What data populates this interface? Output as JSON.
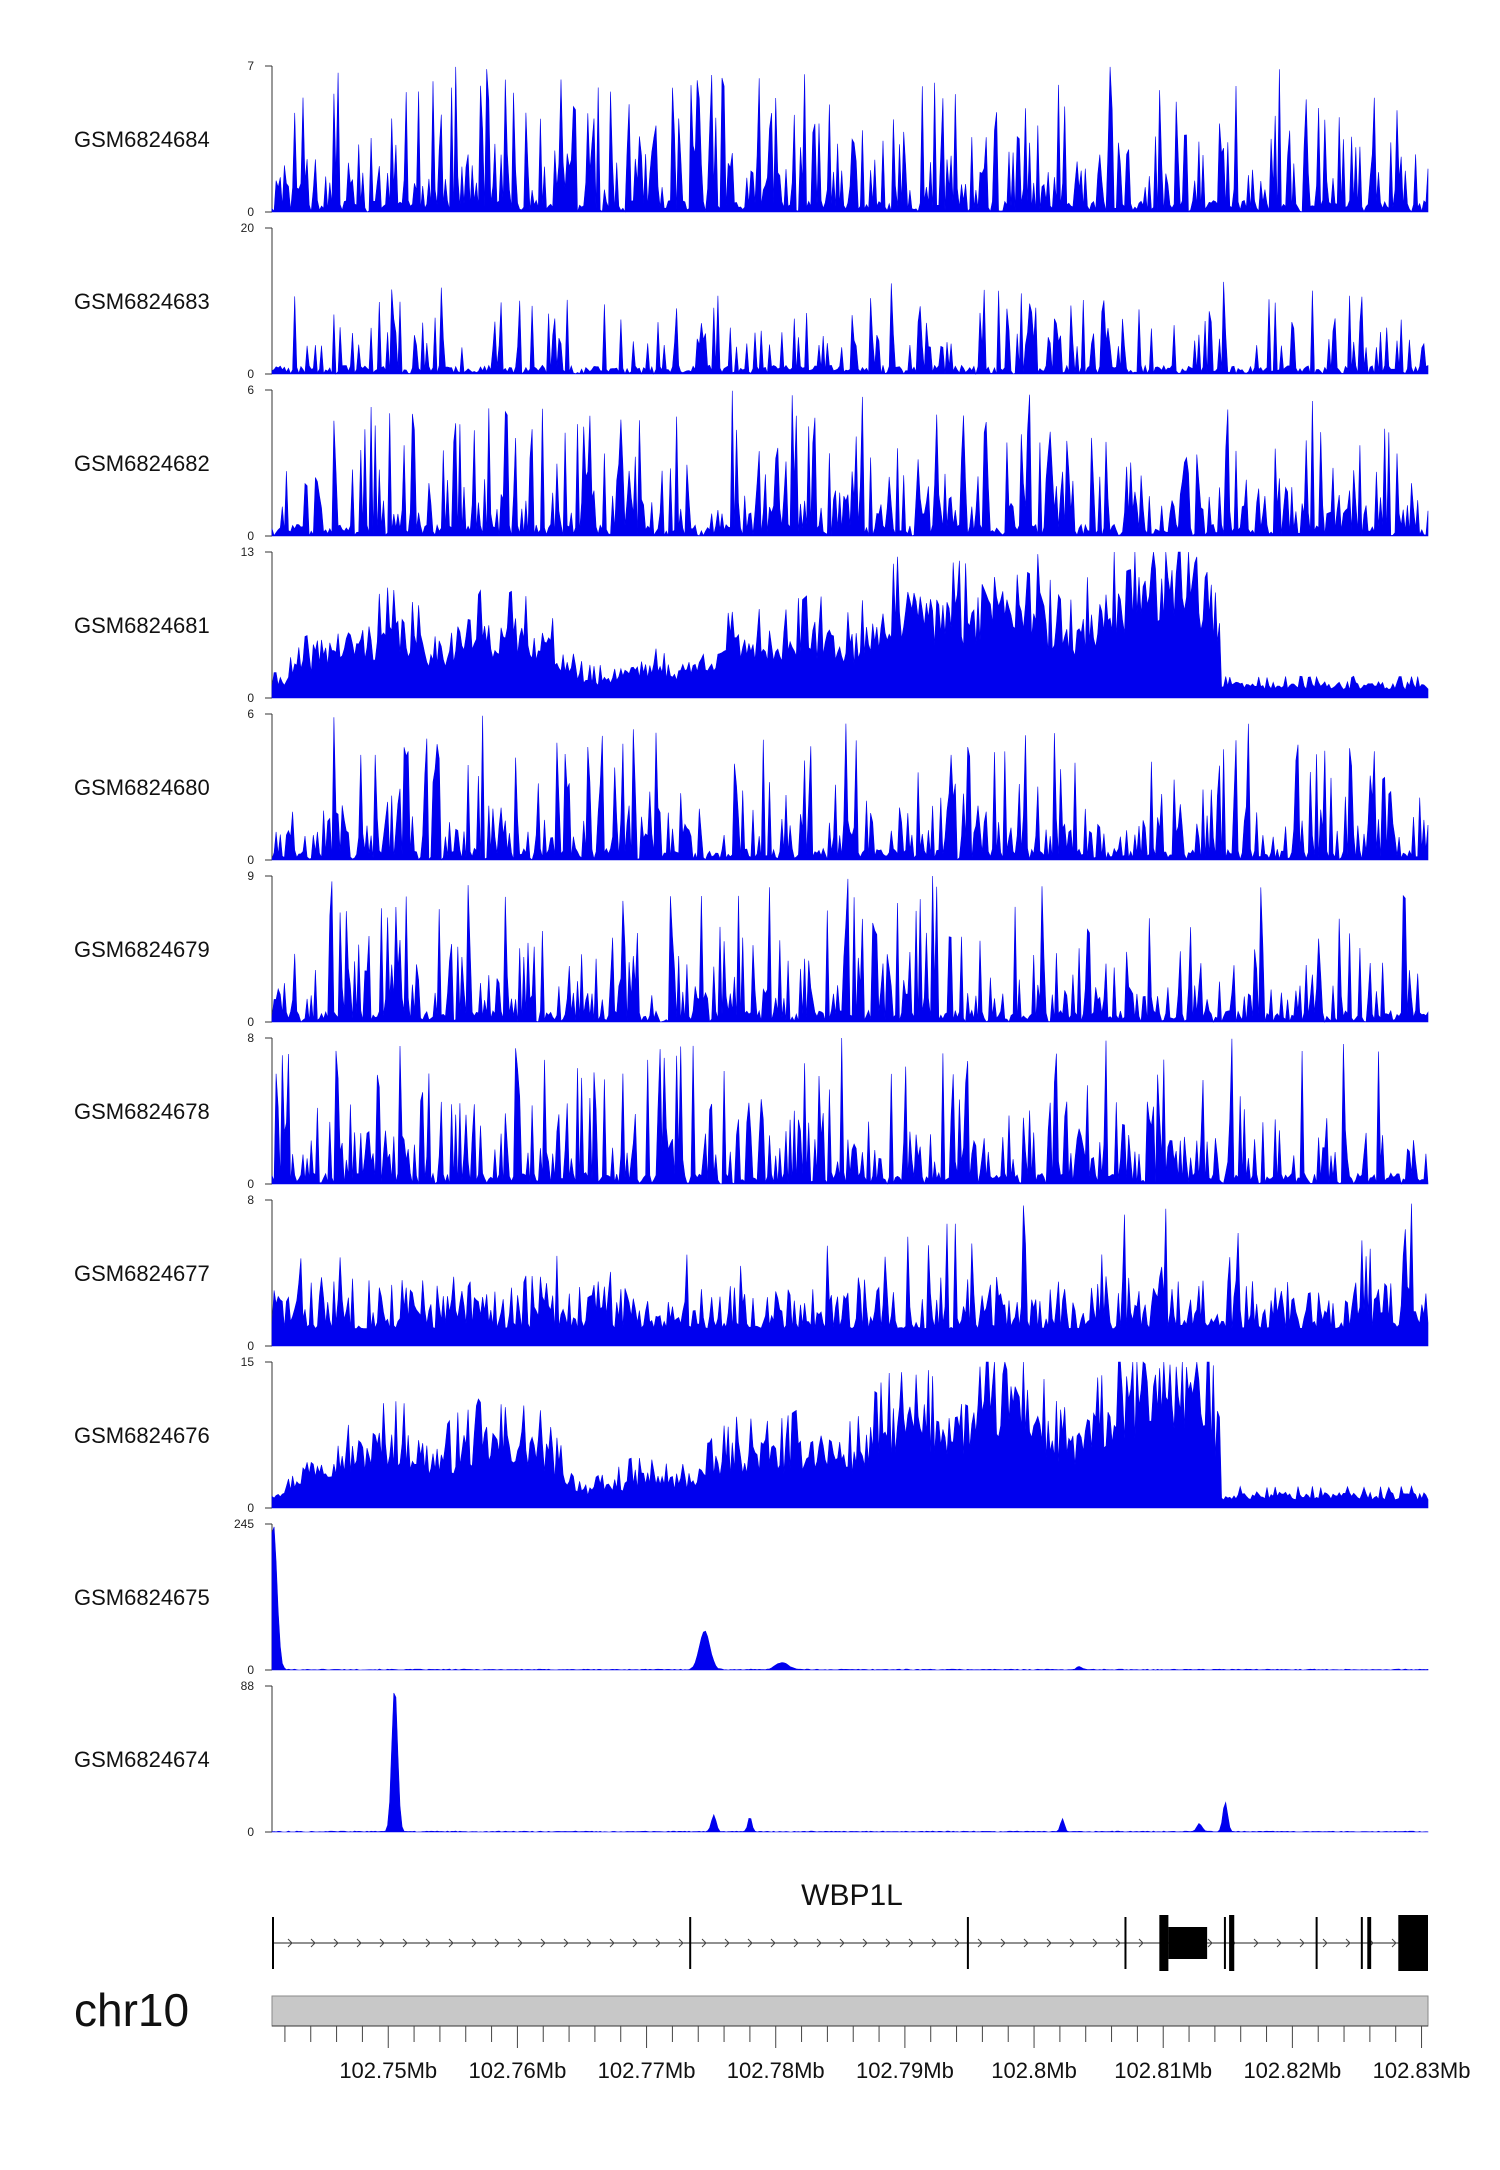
{
  "chart_data": {
    "type": "area",
    "title": "",
    "chromosome": "chr10",
    "gene": "WBP1L",
    "xlabel": "",
    "ylabel": "",
    "xlim": [
      102.741,
      102.8305
    ],
    "x_tick_labels": [
      "102.75Mb",
      "102.76Mb",
      "102.77Mb",
      "102.78Mb",
      "102.79Mb",
      "102.8Mb",
      "102.81Mb",
      "102.82Mb",
      "102.83Mb"
    ],
    "x_ticks": [
      102.75,
      102.76,
      102.77,
      102.78,
      102.79,
      102.8,
      102.81,
      102.82,
      102.83
    ],
    "minor_tick_step": 0.002,
    "fill_color": "#0000ee",
    "series": [
      {
        "name": "GSM6824684",
        "ymin_label": "0",
        "ymax_label": "7",
        "ymax": 7,
        "profile": "noise",
        "seed": 11,
        "base": 0.55
      },
      {
        "name": "GSM6824683",
        "ymin_label": "0",
        "ymax_label": "20",
        "ymax": 20,
        "profile": "sparse",
        "seed": 23,
        "base": 0.28
      },
      {
        "name": "GSM6824682",
        "ymin_label": "0",
        "ymax_label": "6",
        "ymax": 6,
        "profile": "noise",
        "seed": 37,
        "base": 0.42
      },
      {
        "name": "GSM6824681",
        "ymin_label": "0",
        "ymax_label": "13",
        "ymax": 13,
        "profile": "broad",
        "seed": 41,
        "base": 0.25
      },
      {
        "name": "GSM6824680",
        "ymin_label": "0",
        "ymax_label": "6",
        "ymax": 6,
        "profile": "noise",
        "seed": 53,
        "base": 0.5
      },
      {
        "name": "GSM6824679",
        "ymin_label": "0",
        "ymax_label": "9",
        "ymax": 9,
        "profile": "noise",
        "seed": 67,
        "base": 0.4
      },
      {
        "name": "GSM6824678",
        "ymin_label": "0",
        "ymax_label": "8",
        "ymax": 8,
        "profile": "noise",
        "seed": 71,
        "base": 0.42
      },
      {
        "name": "GSM6824677",
        "ymin_label": "0",
        "ymax_label": "8",
        "ymax": 8,
        "profile": "dense",
        "seed": 83,
        "base": 0.3
      },
      {
        "name": "GSM6824676",
        "ymin_label": "0",
        "ymax_label": "15",
        "ymax": 15,
        "profile": "broad",
        "seed": 97,
        "base": 0.25
      },
      {
        "name": "GSM6824675",
        "ymin_label": "0",
        "ymax_label": "245",
        "ymax": 245,
        "profile": "peaks",
        "seed": 101,
        "peaks": [
          [
            102.7411,
            245,
            0.00028
          ],
          [
            102.7745,
            65,
            0.0004
          ],
          [
            102.7805,
            12,
            0.0005
          ],
          [
            102.8035,
            5,
            0.0002
          ]
        ]
      },
      {
        "name": "GSM6824674",
        "ymin_label": "0",
        "ymax_label": "88",
        "ymax": 88,
        "profile": "peaks",
        "seed": 113,
        "peaks": [
          [
            102.7505,
            88,
            0.00022
          ],
          [
            102.7752,
            10,
            0.00018
          ],
          [
            102.778,
            9,
            0.00015
          ],
          [
            102.8022,
            8,
            0.00015
          ],
          [
            102.8148,
            18,
            0.00018
          ],
          [
            102.8128,
            5,
            0.0002
          ]
        ]
      }
    ],
    "gene_model": {
      "strand": "+",
      "exons": [
        [
          102.741,
          102.7411,
          "line"
        ],
        [
          102.7733,
          102.7734,
          "line"
        ],
        [
          102.7948,
          102.7949,
          "line"
        ],
        [
          102.807,
          102.8071,
          "line"
        ],
        [
          102.8097,
          102.8104,
          "thick"
        ],
        [
          102.8104,
          102.8134,
          "utr"
        ],
        [
          102.8147,
          102.8148,
          "line"
        ],
        [
          102.8151,
          102.8155,
          "thick"
        ],
        [
          102.8218,
          102.8219,
          "line"
        ],
        [
          102.8253,
          102.8254,
          "line"
        ],
        [
          102.8258,
          102.8261,
          "line"
        ],
        [
          102.8282,
          102.8305,
          "thick"
        ]
      ]
    }
  }
}
